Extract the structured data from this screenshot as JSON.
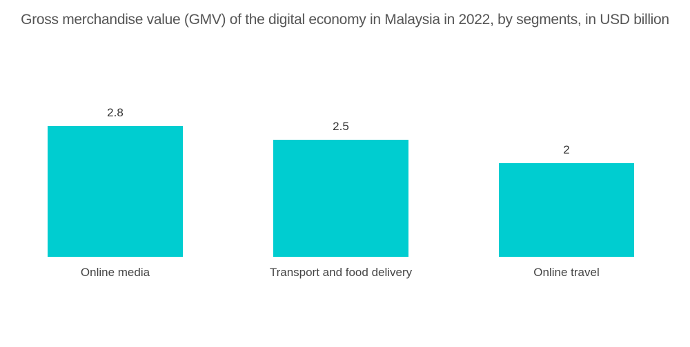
{
  "chart_data": {
    "type": "bar",
    "title": "Gross merchandise value (GMV) of the digital economy in Malaysia in 2022, by segments, in USD billion",
    "categories": [
      "Online media",
      "Transport and food delivery",
      "Online travel"
    ],
    "values": [
      2.8,
      2.5,
      2
    ],
    "value_labels": [
      "2.8",
      "2.5",
      "2"
    ],
    "xlabel": "",
    "ylabel": "",
    "ylim": [
      0,
      2.8
    ],
    "grid": false,
    "legend": null,
    "bar_color": "#00cdd0"
  }
}
